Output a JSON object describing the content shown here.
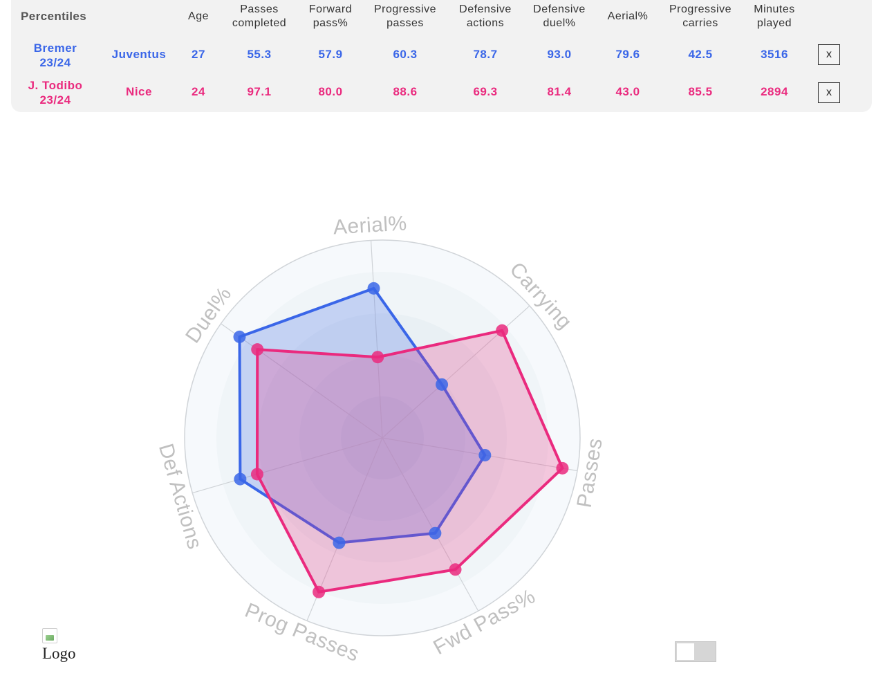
{
  "table": {
    "corner_label": "Percentiles",
    "headers": [
      {
        "line1": "Age",
        "line2": ""
      },
      {
        "line1": "Passes",
        "line2": "completed"
      },
      {
        "line1": "Forward",
        "line2": "pass%"
      },
      {
        "line1": "Progressive",
        "line2": "passes"
      },
      {
        "line1": "Defensive",
        "line2": "actions"
      },
      {
        "line1": "Defensive",
        "line2": "duel%"
      },
      {
        "line1": "Aerial%",
        "line2": ""
      },
      {
        "line1": "Progressive",
        "line2": "carries"
      },
      {
        "line1": "Minutes",
        "line2": "played"
      }
    ],
    "rows": [
      {
        "name_line1": "Bremer",
        "name_line2": "23/24",
        "team": "Juventus",
        "values": [
          "27",
          "55.3",
          "57.9",
          "60.3",
          "78.7",
          "93.0",
          "79.6",
          "42.5",
          "3516"
        ],
        "remove_label": "x",
        "color": "#3a66e8"
      },
      {
        "name_line1": "J. Todibo",
        "name_line2": "23/24",
        "team": "Nice",
        "values": [
          "24",
          "97.1",
          "80.0",
          "88.6",
          "69.3",
          "81.4",
          "43.0",
          "85.5",
          "2894"
        ],
        "remove_label": "x",
        "color": "#ea2a7e"
      }
    ]
  },
  "chart_data": {
    "type": "radar",
    "axes": [
      "Aerial%",
      "Carrying",
      "Passes",
      "Fwd Pass%",
      "Prog Passes",
      "Def Actions",
      "Duel%"
    ],
    "range": [
      0,
      100
    ],
    "series": [
      {
        "name": "Bremer 23/24",
        "color": "#3a66e8",
        "values": [
          79.6,
          42.5,
          55.3,
          57.9,
          60.3,
          78.7,
          93.0
        ]
      },
      {
        "name": "J. Todibo 23/24",
        "color": "#ea2a7e",
        "values": [
          43.0,
          85.5,
          97.1,
          80.0,
          88.6,
          69.3,
          81.4
        ]
      }
    ]
  },
  "footer": {
    "logo_alt": "Logo"
  }
}
